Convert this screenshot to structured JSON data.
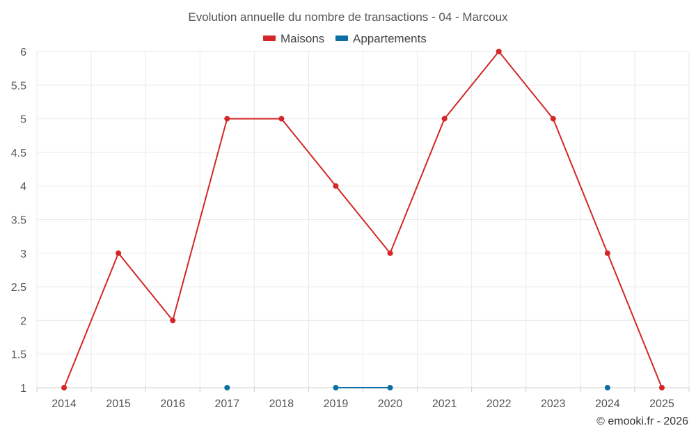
{
  "chart_data": {
    "type": "line",
    "title": "Evolution annuelle du nombre de transactions - 04 - Marcoux",
    "categories": [
      "2014",
      "2015",
      "2016",
      "2017",
      "2018",
      "2019",
      "2020",
      "2021",
      "2022",
      "2023",
      "2024",
      "2025"
    ],
    "series": [
      {
        "name": "Maisons",
        "color": "#d42626",
        "values": [
          1,
          3,
          2,
          5,
          5,
          4,
          3,
          5,
          6,
          5,
          3,
          1
        ]
      },
      {
        "name": "Appartements",
        "color": "#0d6ea3",
        "values": [
          null,
          null,
          null,
          1,
          null,
          1,
          1,
          null,
          null,
          null,
          1,
          null
        ]
      }
    ],
    "ylim": [
      1,
      6
    ],
    "yticks": [
      "1",
      "1.5",
      "2",
      "2.5",
      "3",
      "3.5",
      "4",
      "4.5",
      "5",
      "5.5",
      "6"
    ],
    "grid": true,
    "legend_position": "top-center",
    "xlabel": "",
    "ylabel": ""
  },
  "credit": "© emooki.fr - 2026"
}
